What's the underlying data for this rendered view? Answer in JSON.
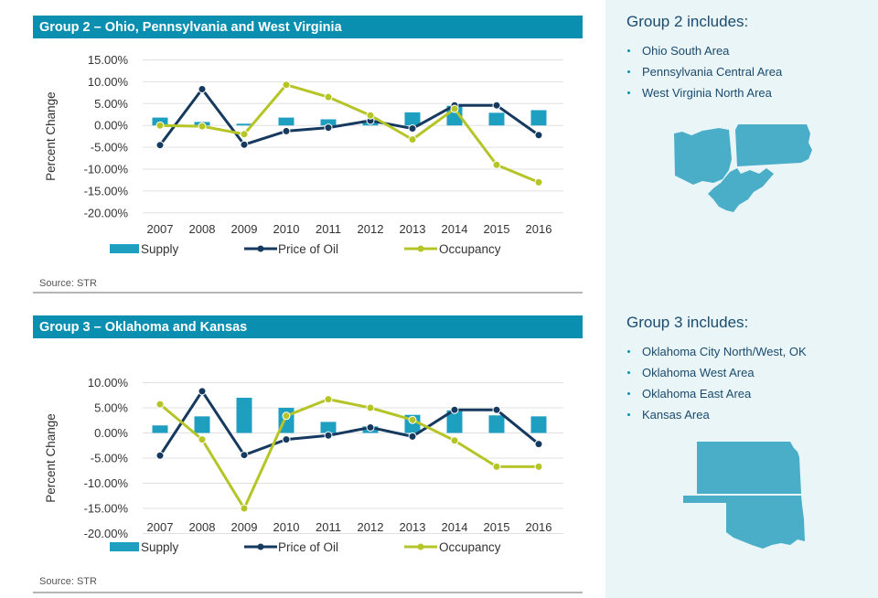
{
  "colors": {
    "header": "#0a8fb0",
    "supply": "#1f9fbf",
    "oil": "#163a5f",
    "occupancy": "#b5c427",
    "map": "#4aaec9",
    "sidebar_bg": "#e9f5f7",
    "sidebar_text": "#1b4b6e"
  },
  "chart_data": [
    {
      "type": "bar",
      "title": "Group 2 – Ohio, Pennsylvania and West Virginia",
      "ylabel": "Percent Change",
      "ylim": [
        -20,
        15
      ],
      "y_ticks": [
        "15.00%",
        "10.00%",
        "5.00%",
        "0.00%",
        "-5.00%",
        "-10.00%",
        "-15.00%",
        "-20.00%"
      ],
      "y_tick_values": [
        15,
        10,
        5,
        0,
        -5,
        -10,
        -15,
        -20
      ],
      "categories": [
        "2007",
        "2008",
        "2009",
        "2010",
        "2011",
        "2012",
        "2013",
        "2014",
        "2015",
        "2016"
      ],
      "series": [
        {
          "name": "Supply",
          "kind": "bar",
          "values": [
            1.8,
            0.8,
            0.4,
            1.8,
            1.4,
            1.2,
            3.0,
            4.5,
            2.9,
            3.5
          ]
        },
        {
          "name": "Price of Oil",
          "kind": "line",
          "values": [
            -4.5,
            8.3,
            -4.4,
            -1.3,
            -0.5,
            1.1,
            -0.7,
            4.6,
            4.6,
            -2.2
          ]
        },
        {
          "name": "Occupancy",
          "kind": "line",
          "values": [
            0.0,
            -0.2,
            -2.0,
            9.3,
            6.5,
            2.3,
            -3.2,
            3.8,
            -9.0,
            -13.0
          ]
        }
      ],
      "legend": "bottom",
      "source": "Source: STR"
    },
    {
      "type": "bar",
      "title": "Group 3 – Oklahoma and Kansas",
      "ylabel": "Percent Change",
      "ylim": [
        -20,
        10
      ],
      "y_ticks": [
        "10.00%",
        "5.00%",
        "0.00%",
        "-5.00%",
        "-10.00%",
        "-15.00%",
        "-20.00%"
      ],
      "y_tick_values": [
        10,
        5,
        0,
        -5,
        -10,
        -15,
        -20
      ],
      "categories": [
        "2007",
        "2008",
        "2009",
        "2010",
        "2011",
        "2012",
        "2013",
        "2014",
        "2015",
        "2016"
      ],
      "series": [
        {
          "name": "Supply",
          "kind": "bar",
          "values": [
            1.5,
            3.3,
            7.0,
            5.0,
            2.2,
            1.3,
            3.6,
            4.5,
            3.5,
            3.3
          ]
        },
        {
          "name": "Price of Oil",
          "kind": "line",
          "values": [
            -4.5,
            8.3,
            -4.4,
            -1.3,
            -0.5,
            1.1,
            -0.7,
            4.6,
            4.6,
            -2.2
          ]
        },
        {
          "name": "Occupancy",
          "kind": "line",
          "values": [
            5.7,
            -1.3,
            -15.0,
            3.4,
            6.7,
            5.0,
            2.6,
            -1.5,
            -6.7,
            -6.7
          ]
        }
      ],
      "legend": "bottom",
      "source": "Source: STR"
    }
  ],
  "sidebar": {
    "group2": {
      "title": "Group 2 includes:",
      "items": [
        "Ohio South Area",
        "Pennsylvania Central Area",
        "West Virginia North Area"
      ],
      "map_icon": "ohio-pennsylvania-west-virginia-map"
    },
    "group3": {
      "title": "Group 3 includes:",
      "items": [
        "Oklahoma City North/West, OK",
        "Oklahoma West Area",
        "Oklahoma East Area",
        "Kansas Area"
      ],
      "map_icon": "oklahoma-kansas-map"
    }
  }
}
